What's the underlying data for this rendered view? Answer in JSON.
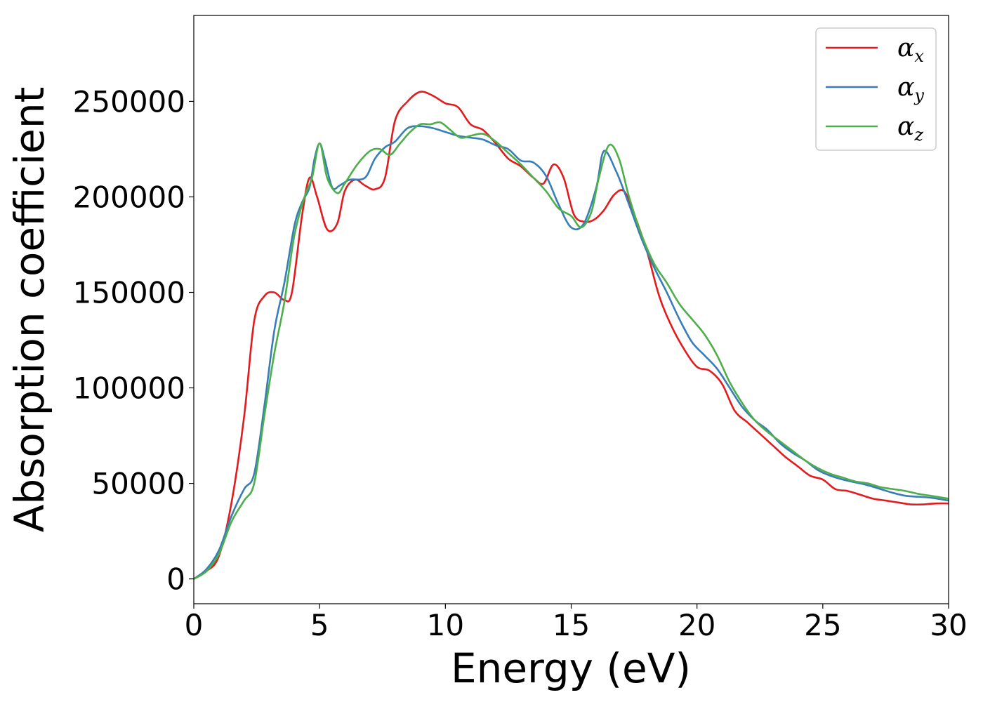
{
  "chart_data": {
    "type": "line",
    "xlabel": "Energy (eV)",
    "ylabel": "Absorption coefficient",
    "xlim": [
      0,
      30
    ],
    "ylim": [
      -13000,
      295000
    ],
    "xticks": [
      0,
      5,
      10,
      15,
      20,
      25,
      30
    ],
    "yticks": [
      0,
      50000,
      100000,
      150000,
      200000,
      250000
    ],
    "xtick_labels": [
      "0",
      "5",
      "10",
      "15",
      "20",
      "25",
      "30"
    ],
    "ytick_labels": [
      "0",
      "50000",
      "100000",
      "150000",
      "200000",
      "250000"
    ],
    "grid": false,
    "legend_position": "top-right",
    "series": [
      {
        "name": "α",
        "subscript": "x",
        "color": "#e41a1c",
        "points": [
          [
            0,
            0
          ],
          [
            0.5,
            4000
          ],
          [
            1.0,
            12000
          ],
          [
            1.5,
            40000
          ],
          [
            2.0,
            85000
          ],
          [
            2.4,
            135000
          ],
          [
            2.8,
            148000
          ],
          [
            3.2,
            150000
          ],
          [
            3.6,
            146000
          ],
          [
            3.9,
            150000
          ],
          [
            4.3,
            190000
          ],
          [
            4.6,
            210000
          ],
          [
            4.9,
            200000
          ],
          [
            5.3,
            183000
          ],
          [
            5.7,
            186000
          ],
          [
            6.0,
            203000
          ],
          [
            6.4,
            209000
          ],
          [
            6.8,
            206000
          ],
          [
            7.2,
            204000
          ],
          [
            7.6,
            210000
          ],
          [
            8.0,
            240000
          ],
          [
            8.5,
            250000
          ],
          [
            9.0,
            255000
          ],
          [
            9.5,
            253000
          ],
          [
            10.0,
            249000
          ],
          [
            10.5,
            247000
          ],
          [
            11.0,
            238000
          ],
          [
            11.5,
            235000
          ],
          [
            12.0,
            228000
          ],
          [
            12.5,
            220000
          ],
          [
            13.0,
            216000
          ],
          [
            13.5,
            210000
          ],
          [
            13.9,
            207000
          ],
          [
            14.3,
            217000
          ],
          [
            14.7,
            210000
          ],
          [
            15.1,
            191000
          ],
          [
            15.5,
            187000
          ],
          [
            15.9,
            188000
          ],
          [
            16.3,
            193000
          ],
          [
            16.7,
            201000
          ],
          [
            17.1,
            203000
          ],
          [
            17.5,
            191000
          ],
          [
            18.0,
            172000
          ],
          [
            18.5,
            148000
          ],
          [
            19.0,
            132000
          ],
          [
            19.5,
            120000
          ],
          [
            20.0,
            111000
          ],
          [
            20.5,
            109000
          ],
          [
            21.0,
            102000
          ],
          [
            21.5,
            88000
          ],
          [
            22.0,
            82000
          ],
          [
            22.5,
            76000
          ],
          [
            23.0,
            70000
          ],
          [
            23.5,
            64000
          ],
          [
            24.0,
            59000
          ],
          [
            24.5,
            54000
          ],
          [
            25.0,
            52000
          ],
          [
            25.5,
            47000
          ],
          [
            26.0,
            46000
          ],
          [
            26.5,
            44000
          ],
          [
            27.0,
            42000
          ],
          [
            27.5,
            41000
          ],
          [
            28.0,
            40000
          ],
          [
            28.5,
            39000
          ],
          [
            29.0,
            39000
          ],
          [
            29.5,
            39500
          ],
          [
            30.0,
            39500
          ]
        ]
      },
      {
        "name": "α",
        "subscript": "y",
        "color": "#377eb8",
        "points": [
          [
            0,
            0
          ],
          [
            0.5,
            5000
          ],
          [
            1.0,
            15000
          ],
          [
            1.5,
            33000
          ],
          [
            2.0,
            47000
          ],
          [
            2.4,
            55000
          ],
          [
            2.8,
            90000
          ],
          [
            3.2,
            130000
          ],
          [
            3.6,
            155000
          ],
          [
            4.0,
            185000
          ],
          [
            4.3,
            197000
          ],
          [
            4.6,
            205000
          ],
          [
            4.8,
            220000
          ],
          [
            5.0,
            228000
          ],
          [
            5.2,
            220000
          ],
          [
            5.5,
            205000
          ],
          [
            5.8,
            206000
          ],
          [
            6.2,
            209000
          ],
          [
            6.8,
            210000
          ],
          [
            7.2,
            220000
          ],
          [
            7.6,
            226000
          ],
          [
            8.0,
            229000
          ],
          [
            8.5,
            236000
          ],
          [
            9.0,
            237000
          ],
          [
            9.5,
            236000
          ],
          [
            10.0,
            234000
          ],
          [
            10.5,
            232000
          ],
          [
            11.0,
            231000
          ],
          [
            11.5,
            230000
          ],
          [
            12.0,
            227000
          ],
          [
            12.5,
            225000
          ],
          [
            13.0,
            219000
          ],
          [
            13.5,
            218000
          ],
          [
            14.0,
            211000
          ],
          [
            14.5,
            196000
          ],
          [
            15.0,
            184000
          ],
          [
            15.5,
            186000
          ],
          [
            16.0,
            205000
          ],
          [
            16.3,
            224000
          ],
          [
            16.8,
            213000
          ],
          [
            17.3,
            196000
          ],
          [
            17.8,
            178000
          ],
          [
            18.3,
            163000
          ],
          [
            18.8,
            150000
          ],
          [
            19.3,
            136000
          ],
          [
            19.8,
            124000
          ],
          [
            20.3,
            117000
          ],
          [
            20.8,
            110000
          ],
          [
            21.3,
            100000
          ],
          [
            21.8,
            90000
          ],
          [
            22.3,
            83000
          ],
          [
            22.8,
            78000
          ],
          [
            23.3,
            71000
          ],
          [
            23.8,
            66000
          ],
          [
            24.3,
            62000
          ],
          [
            24.8,
            57000
          ],
          [
            25.3,
            54000
          ],
          [
            25.8,
            52000
          ],
          [
            26.3,
            50500
          ],
          [
            26.8,
            49000
          ],
          [
            27.3,
            47000
          ],
          [
            27.8,
            45000
          ],
          [
            28.3,
            43500
          ],
          [
            28.8,
            43000
          ],
          [
            29.3,
            42500
          ],
          [
            30.0,
            41000
          ]
        ]
      },
      {
        "name": "α",
        "subscript": "z",
        "color": "#4daf4a",
        "points": [
          [
            0,
            0
          ],
          [
            0.5,
            4000
          ],
          [
            1.0,
            13000
          ],
          [
            1.5,
            30000
          ],
          [
            2.0,
            41000
          ],
          [
            2.4,
            50000
          ],
          [
            2.8,
            85000
          ],
          [
            3.2,
            118000
          ],
          [
            3.6,
            145000
          ],
          [
            4.0,
            180000
          ],
          [
            4.4,
            200000
          ],
          [
            4.7,
            210000
          ],
          [
            5.0,
            228000
          ],
          [
            5.3,
            210000
          ],
          [
            5.7,
            202000
          ],
          [
            6.0,
            207000
          ],
          [
            6.5,
            217000
          ],
          [
            7.0,
            224000
          ],
          [
            7.4,
            225000
          ],
          [
            7.8,
            222000
          ],
          [
            8.2,
            228000
          ],
          [
            8.6,
            234000
          ],
          [
            9.0,
            238000
          ],
          [
            9.4,
            238000
          ],
          [
            9.8,
            239000
          ],
          [
            10.2,
            235000
          ],
          [
            10.6,
            231000
          ],
          [
            11.0,
            232000
          ],
          [
            11.5,
            233000
          ],
          [
            12.0,
            229000
          ],
          [
            12.5,
            223000
          ],
          [
            13.0,
            217000
          ],
          [
            13.5,
            210000
          ],
          [
            14.0,
            203000
          ],
          [
            14.5,
            194000
          ],
          [
            15.0,
            190000
          ],
          [
            15.4,
            184000
          ],
          [
            15.8,
            192000
          ],
          [
            16.1,
            210000
          ],
          [
            16.5,
            227000
          ],
          [
            16.9,
            220000
          ],
          [
            17.3,
            200000
          ],
          [
            17.8,
            180000
          ],
          [
            18.3,
            165000
          ],
          [
            18.8,
            155000
          ],
          [
            19.3,
            144000
          ],
          [
            19.8,
            136000
          ],
          [
            20.3,
            128000
          ],
          [
            20.8,
            117000
          ],
          [
            21.3,
            103000
          ],
          [
            21.8,
            92000
          ],
          [
            22.3,
            83000
          ],
          [
            22.8,
            77000
          ],
          [
            23.3,
            72000
          ],
          [
            23.8,
            67000
          ],
          [
            24.3,
            62000
          ],
          [
            24.8,
            58000
          ],
          [
            25.3,
            55000
          ],
          [
            25.8,
            53000
          ],
          [
            26.3,
            51000
          ],
          [
            26.8,
            50000
          ],
          [
            27.3,
            48000
          ],
          [
            27.8,
            47000
          ],
          [
            28.3,
            46000
          ],
          [
            28.8,
            44500
          ],
          [
            29.3,
            43500
          ],
          [
            30.0,
            42000
          ]
        ]
      }
    ]
  }
}
